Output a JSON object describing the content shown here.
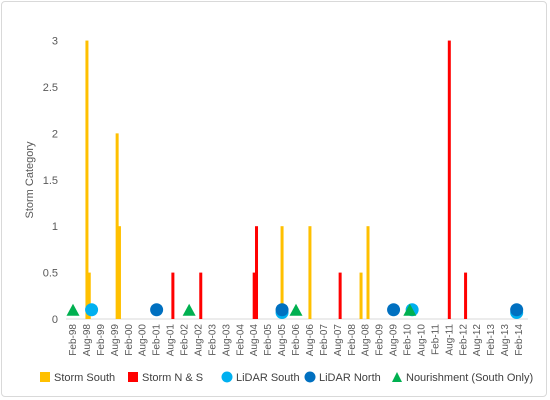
{
  "chart_data": {
    "type": "bar",
    "title": "",
    "xlabel": "",
    "ylabel": "Storm Category",
    "ylim": [
      0,
      3.2
    ],
    "y_ticks": [
      0,
      0.5,
      1,
      1.5,
      2,
      2.5,
      3
    ],
    "y_tick_labels": [
      "0",
      "0.5",
      "1",
      "1.5",
      "2",
      "2.5",
      "3"
    ],
    "x_range": [
      "1998-02",
      "2014-02"
    ],
    "x_ticks": [
      "Feb-98",
      "Aug-98",
      "Feb-99",
      "Aug-99",
      "Feb-00",
      "Aug-00",
      "Feb-01",
      "Aug-01",
      "Feb-02",
      "Aug-02",
      "Feb-03",
      "Aug-03",
      "Feb-04",
      "Aug-04",
      "Feb-05",
      "Aug-05",
      "Feb-06",
      "Aug-06",
      "Feb-07",
      "Aug-07",
      "Feb-08",
      "Aug-08",
      "Feb-09",
      "Aug-09",
      "Feb-10",
      "Aug-10",
      "Feb-11",
      "Aug-11",
      "Feb-12",
      "Aug-12",
      "Feb-13",
      "Aug-13",
      "Feb-14"
    ],
    "grid": false,
    "legend": "bottom",
    "series": [
      {
        "name": "Storm South",
        "kind": "bar",
        "color": "#FFC000",
        "points": [
          {
            "x": "1998-08",
            "y": 3
          },
          {
            "x": "1998-09",
            "y": 0.5
          },
          {
            "x": "1999-09",
            "y": 2
          },
          {
            "x": "1999-10",
            "y": 1
          },
          {
            "x": "2005-08",
            "y": 1
          },
          {
            "x": "2006-08",
            "y": 1
          },
          {
            "x": "2008-06",
            "y": 0.5
          },
          {
            "x": "2008-09",
            "y": 1
          }
        ]
      },
      {
        "name": "Storm N & S",
        "kind": "bar",
        "color": "#FF0000",
        "points": [
          {
            "x": "2001-09",
            "y": 0.5
          },
          {
            "x": "2002-09",
            "y": 0.5
          },
          {
            "x": "2004-08",
            "y": 0.5
          },
          {
            "x": "2004-09",
            "y": 1
          },
          {
            "x": "2007-09",
            "y": 0.5
          },
          {
            "x": "2011-08",
            "y": 3
          },
          {
            "x": "2012-03",
            "y": 0.5
          }
        ]
      },
      {
        "name": "LiDAR South",
        "kind": "circle",
        "color": "#00B0F0",
        "points": [
          {
            "x": "1998-10",
            "y": 0.1
          },
          {
            "x": "2005-08",
            "y": 0.07
          },
          {
            "x": "2010-04",
            "y": 0.1
          },
          {
            "x": "2014-01",
            "y": 0.07
          }
        ]
      },
      {
        "name": "LiDAR North",
        "kind": "circle",
        "color": "#0070C0",
        "points": [
          {
            "x": "2001-02",
            "y": 0.1
          },
          {
            "x": "2005-08",
            "y": 0.1
          },
          {
            "x": "2009-08",
            "y": 0.1
          },
          {
            "x": "2014-01",
            "y": 0.1
          }
        ]
      },
      {
        "name": "Nourishment (South Only)",
        "kind": "triangle",
        "color": "#00B050",
        "points": [
          {
            "x": "1998-02",
            "y": 0.1
          },
          {
            "x": "2002-04",
            "y": 0.1
          },
          {
            "x": "2006-02",
            "y": 0.1
          },
          {
            "x": "2010-03",
            "y": 0.1
          }
        ]
      }
    ]
  }
}
